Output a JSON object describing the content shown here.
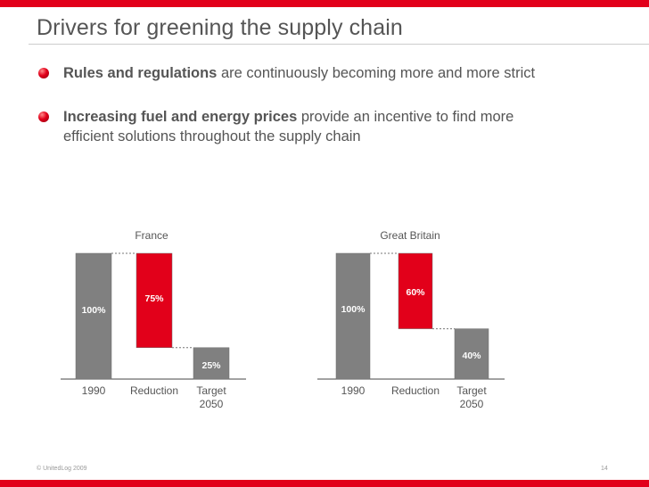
{
  "slide": {
    "title": "Drivers for greening the supply chain",
    "bullets": [
      {
        "bold": "Rules and regulations",
        "rest": " are continuously becoming more and more strict"
      },
      {
        "bold": "Increasing fuel and energy prices",
        "rest": " provide an incentive to find more",
        "rest2": "efficient solutions throughout the supply chain"
      }
    ],
    "footer_left": "© UnitedLog 2009",
    "page_number": "14"
  },
  "colors": {
    "accent": "#e2001a",
    "gray_bar": "#808080",
    "text": "#555555"
  },
  "chart_data": [
    {
      "type": "bar",
      "subtype": "waterfall",
      "title": "France",
      "categories": [
        "1990",
        "Reduction",
        "Target 2050"
      ],
      "category_lines": [
        [
          "1990"
        ],
        [
          "Reduction"
        ],
        [
          "Target",
          "2050"
        ]
      ],
      "values": [
        100,
        75,
        25
      ],
      "labels": [
        "100%",
        "75%",
        "25%"
      ],
      "ylim": [
        0,
        100
      ]
    },
    {
      "type": "bar",
      "subtype": "waterfall",
      "title": "Great Britain",
      "categories": [
        "1990",
        "Reduction",
        "Target 2050"
      ],
      "category_lines": [
        [
          "1990"
        ],
        [
          "Reduction"
        ],
        [
          "Target",
          "2050"
        ]
      ],
      "values": [
        100,
        60,
        40
      ],
      "labels": [
        "100%",
        "60%",
        "40%"
      ],
      "ylim": [
        0,
        100
      ]
    }
  ]
}
